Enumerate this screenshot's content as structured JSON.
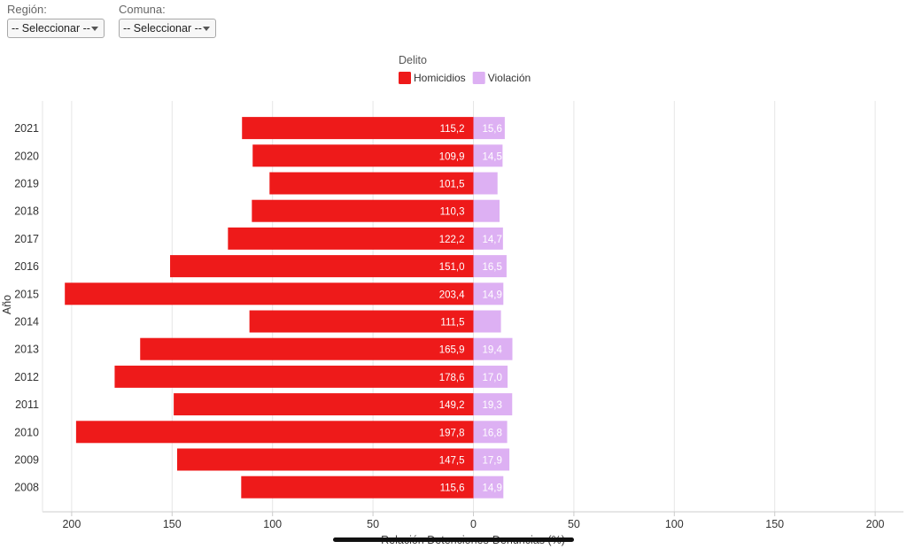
{
  "filters": {
    "region": {
      "label": "Región:",
      "value": "-- Seleccionar --"
    },
    "comuna": {
      "label": "Comuna:",
      "value": "-- Seleccionar --"
    }
  },
  "legend": {
    "title": "Delito",
    "items": [
      {
        "label": "Homicidios",
        "color": "#ee1a1a"
      },
      {
        "label": "Violación",
        "color": "#ddb0f3"
      }
    ]
  },
  "chart_data": {
    "type": "bar",
    "orientation": "horizontal",
    "layout": "diverging",
    "title": "",
    "xlabel": "Relación Detenciones-Denuncias (%)",
    "ylabel": "Año",
    "categories": [
      "2021",
      "2020",
      "2019",
      "2018",
      "2017",
      "2016",
      "2015",
      "2014",
      "2013",
      "2012",
      "2011",
      "2010",
      "2009",
      "2008"
    ],
    "xlim": [
      -200,
      200
    ],
    "xticks": [
      "200",
      "150",
      "100",
      "50",
      "0",
      "50",
      "100",
      "150",
      "200"
    ],
    "grid": true,
    "legend_position": "top-center",
    "series": [
      {
        "name": "Homicidios",
        "color": "#ee1a1a",
        "direction": "left",
        "values": [
          115.2,
          109.9,
          101.5,
          110.3,
          122.2,
          151.0,
          203.4,
          111.5,
          165.9,
          178.6,
          149.2,
          197.8,
          147.5,
          115.6
        ],
        "labels": [
          "115,2",
          "109,9",
          "101,5",
          "110,3",
          "122,2",
          "151,0",
          "203,4",
          "111,5",
          "165,9",
          "178,6",
          "149,2",
          "197,8",
          "147,5",
          "115,6"
        ]
      },
      {
        "name": "Violación",
        "color": "#ddb0f3",
        "direction": "right",
        "values": [
          15.6,
          14.5,
          12.0,
          13.0,
          14.7,
          16.5,
          14.9,
          13.7,
          19.4,
          17.0,
          19.3,
          16.8,
          17.9,
          14.9
        ],
        "labels": [
          "15,6",
          "14,5",
          "",
          "",
          "14,7",
          "16,5",
          "14,9",
          "",
          "19,4",
          "17,0",
          "19,3",
          "16,8",
          "17,9",
          "14,9"
        ]
      }
    ]
  }
}
